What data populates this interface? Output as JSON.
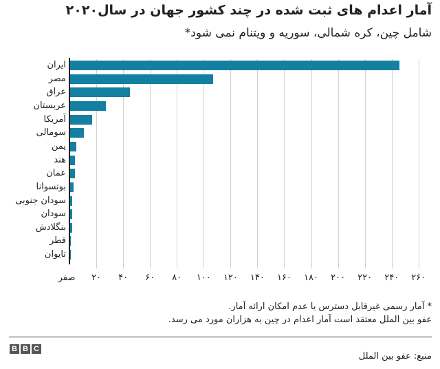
{
  "header": {
    "title": "آمار اعدام های ثبت شده در چند کشور جهان در سال۲۰۲۰",
    "subtitle": "شامل چین، کره شمالی، سوریه و ویتنام نمی شود*"
  },
  "footnote": {
    "line1": "* آمار رسمی غیرقابل دسترس یا عدم امکان ارائه آمار.",
    "line2": "عفو بین الملل معتقد است آمار اعدام در چین به هزاران مورد می رسد."
  },
  "footer": {
    "logo": [
      "B",
      "B",
      "C"
    ],
    "source": "منبع: عفو بین الملل"
  },
  "style": {
    "bar_color": "#1380A1",
    "axis_color": "#222222",
    "grid_color": "#d0d0d0"
  },
  "chart_data": {
    "type": "bar",
    "orientation": "horizontal",
    "title": "آمار اعدام های ثبت شده در چند کشور جهان در سال۲۰۲۰",
    "subtitle": "شامل چین، کره شمالی، سوریه و ویتنام نمی شود*",
    "categories": [
      "ایران",
      "مصر",
      "عراق",
      "عربستان",
      "آمریکا",
      "سومالی",
      "یمن",
      "هند",
      "عمان",
      "بوتسوانا",
      "سودان جنوبی",
      "سودان",
      "بنگلادش",
      "قطر",
      "تایوان"
    ],
    "values": [
      246,
      107,
      45,
      27,
      17,
      11,
      5,
      4,
      4,
      3,
      2,
      2,
      2,
      1,
      1
    ],
    "xlabel": "",
    "ylabel": "",
    "xlim": [
      0,
      260
    ],
    "x_ticks": [
      0,
      20,
      40,
      60,
      80,
      100,
      120,
      140,
      160,
      180,
      200,
      220,
      240,
      260
    ],
    "x_tick_labels": [
      "صفر",
      "۲۰",
      "۴۰",
      "۶۰",
      "۸۰",
      "۱۰۰",
      "۱۲۰",
      "۱۴۰",
      "۱۶۰",
      "۱۸۰",
      "۲۰۰",
      "۲۲۰",
      "۲۴۰",
      "۲۶۰"
    ],
    "grid": "vertical",
    "legend": "none",
    "source": "منبع: عفو بین الملل"
  }
}
